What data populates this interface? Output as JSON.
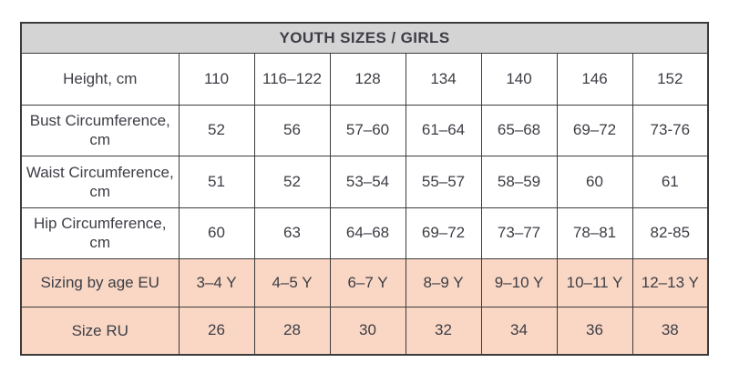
{
  "title": "YOUTH SIZES / GIRLS",
  "colors": {
    "title_bg": "#d4d4d4",
    "highlight_bg": "#f9d7c4",
    "border": "#3b3b3b",
    "text": "#3d3d45"
  },
  "rows": [
    {
      "label": "Height, cm",
      "values": [
        "110",
        "116–122",
        "128",
        "134",
        "140",
        "146",
        "152"
      ]
    },
    {
      "label": "Bust Circumference, cm",
      "values": [
        "52",
        "56",
        "57–60",
        "61–64",
        "65–68",
        "69–72",
        "73-76"
      ]
    },
    {
      "label": "Waist Circumference, cm",
      "values": [
        "51",
        "52",
        "53–54",
        "55–57",
        "58–59",
        "60",
        "61"
      ]
    },
    {
      "label": "Hip Circumference, cm",
      "values": [
        "60",
        "63",
        "64–68",
        "69–72",
        "73–77",
        "78–81",
        "82-85"
      ]
    },
    {
      "label": "Sizing by age EU",
      "values": [
        "3–4 Y",
        "4–5 Y",
        "6–7 Y",
        "8–9 Y",
        "9–10 Y",
        "10–11 Y",
        "12–13 Y"
      ]
    },
    {
      "label": "Size RU",
      "values": [
        "26",
        "28",
        "30",
        "32",
        "34",
        "36",
        "38"
      ]
    }
  ]
}
